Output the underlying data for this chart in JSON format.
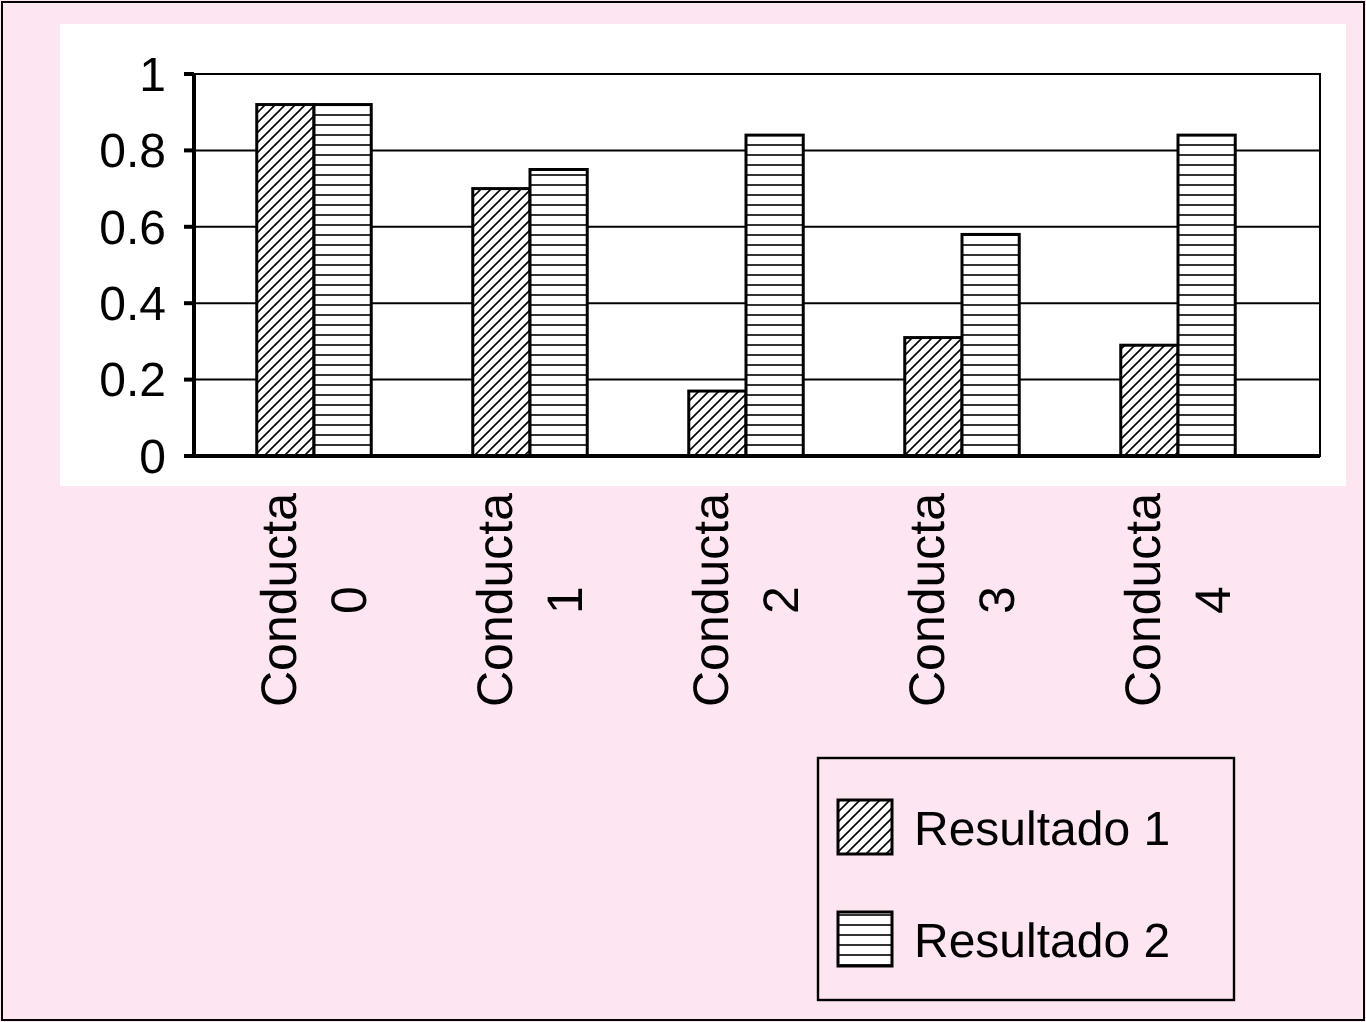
{
  "chart_data": {
    "type": "bar",
    "categories": [
      "Conducta 0",
      "Conducta 1",
      "Conducta 2",
      "Conducta 3",
      "Conducta 4"
    ],
    "series": [
      {
        "name": "Resultado 1",
        "color": "#000000",
        "values": [
          0.92,
          0.7,
          0.17,
          0.31,
          0.29
        ]
      },
      {
        "name": "Resultado 2",
        "color": "#000000",
        "values": [
          0.92,
          0.75,
          0.84,
          0.58,
          0.84
        ]
      }
    ],
    "ylim": [
      0,
      1
    ],
    "yticks": [
      0,
      0.2,
      0.4,
      0.6,
      0.8,
      1
    ],
    "grid": "y",
    "legend": "bottom right"
  }
}
